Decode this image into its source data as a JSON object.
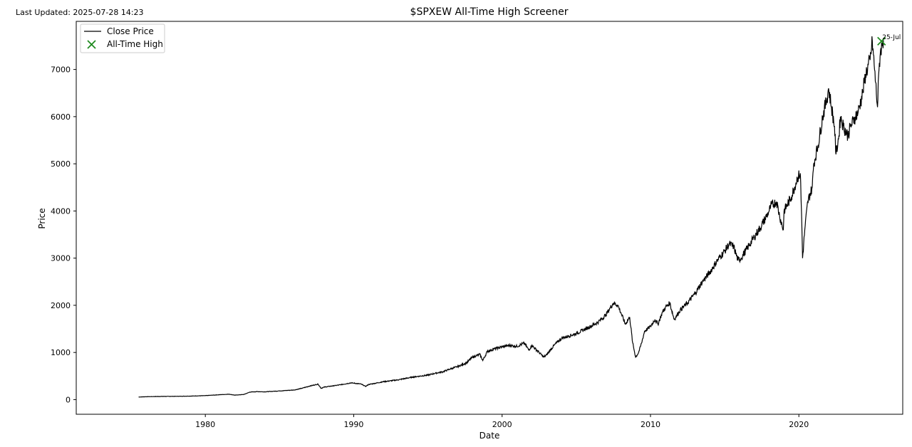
{
  "last_updated": "Last Updated: 2025-07-28 14:23",
  "chart_data": {
    "type": "line",
    "title": "$SPXEW All-Time High Screener",
    "xlabel": "Date",
    "ylabel": "Price",
    "xlim": [
      1971.3,
      2027.0
    ],
    "ylim": [
      -310,
      8020
    ],
    "x_ticks": [
      1980,
      1990,
      2000,
      2010,
      2020
    ],
    "y_ticks": [
      0,
      1000,
      2000,
      3000,
      4000,
      5000,
      6000,
      7000
    ],
    "grid": false,
    "legend_position": "top-left",
    "legend": [
      "Close Price",
      "All-Time High"
    ],
    "series": [
      {
        "name": "Close Price",
        "color": "#000000",
        "x": [
          1975.5,
          1976.0,
          1977.0,
          1978.0,
          1979.0,
          1980.0,
          1981.0,
          1981.6,
          1982.0,
          1982.6,
          1983.0,
          1983.5,
          1984.0,
          1984.5,
          1985.0,
          1986.0,
          1986.5,
          1987.0,
          1987.6,
          1987.8,
          1988.0,
          1989.0,
          1989.8,
          1990.0,
          1990.5,
          1990.8,
          1991.0,
          1992.0,
          1993.0,
          1994.0,
          1995.0,
          1995.5,
          1996.0,
          1996.5,
          1997.0,
          1997.6,
          1998.0,
          1998.5,
          1998.7,
          1999.0,
          1999.5,
          2000.0,
          2000.5,
          2001.0,
          2001.5,
          2001.8,
          2002.0,
          2002.5,
          2002.8,
          2003.0,
          2003.5,
          2004.0,
          2004.5,
          2005.0,
          2005.5,
          2006.0,
          2006.5,
          2007.0,
          2007.3,
          2007.5,
          2007.8,
          2008.0,
          2008.3,
          2008.6,
          2008.8,
          2009.0,
          2009.2,
          2009.4,
          2009.6,
          2010.0,
          2010.3,
          2010.5,
          2010.8,
          2011.0,
          2011.3,
          2011.6,
          2011.8,
          2012.0,
          2012.5,
          2013.0,
          2013.5,
          2014.0,
          2014.5,
          2015.0,
          2015.3,
          2015.6,
          2015.9,
          2016.1,
          2016.5,
          2017.0,
          2017.5,
          2018.0,
          2018.1,
          2018.5,
          2018.7,
          2018.95,
          2019.0,
          2019.5,
          2019.9,
          2020.1,
          2020.2,
          2020.25,
          2020.4,
          2020.6,
          2020.9,
          2021.0,
          2021.3,
          2021.6,
          2021.9,
          2022.0,
          2022.2,
          2022.4,
          2022.5,
          2022.7,
          2022.8,
          2023.0,
          2023.3,
          2023.5,
          2023.8,
          2024.0,
          2024.3,
          2024.5,
          2024.8,
          2024.95,
          2025.1,
          2025.3,
          2025.4,
          2025.5,
          2025.6,
          2025.7
        ],
        "y": [
          55,
          62,
          68,
          70,
          75,
          85,
          105,
          115,
          95,
          110,
          160,
          170,
          165,
          175,
          185,
          205,
          240,
          285,
          330,
          240,
          265,
          310,
          355,
          350,
          330,
          280,
          320,
          380,
          420,
          480,
          520,
          560,
          590,
          650,
          700,
          780,
          900,
          960,
          830,
          1020,
          1080,
          1120,
          1150,
          1130,
          1200,
          1050,
          1150,
          1000,
          900,
          950,
          1150,
          1300,
          1350,
          1400,
          1480,
          1560,
          1650,
          1800,
          1950,
          2050,
          2000,
          1850,
          1600,
          1750,
          1200,
          900,
          1000,
          1200,
          1450,
          1550,
          1700,
          1600,
          1850,
          1950,
          2050,
          1700,
          1800,
          1900,
          2050,
          2250,
          2500,
          2700,
          2950,
          3150,
          3300,
          3250,
          2950,
          3000,
          3200,
          3450,
          3700,
          4000,
          4100,
          4200,
          3900,
          3600,
          4000,
          4300,
          4700,
          4800,
          3700,
          3000,
          3600,
          4200,
          4500,
          5000,
          5400,
          6000,
          6400,
          6600,
          6200,
          5800,
          5200,
          5600,
          6000,
          5800,
          5600,
          5800,
          6000,
          6100,
          6500,
          6900,
          7200,
          7600,
          7000,
          6200,
          7000,
          7400,
          7500,
          7620
        ]
      }
    ],
    "highlight": {
      "name": "All-Time High",
      "color": "#1f8a1f",
      "x": 2025.57,
      "y": 7600,
      "label": "25-Jul"
    }
  }
}
